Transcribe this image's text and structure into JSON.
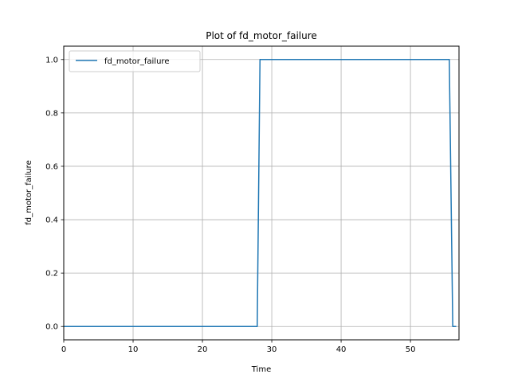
{
  "chart_data": {
    "type": "line",
    "title": "Plot of fd_motor_failure",
    "xlabel": "Time",
    "ylabel": "fd_motor_failure",
    "xlim": [
      0,
      57
    ],
    "ylim": [
      -0.05,
      1.05
    ],
    "xticks": [
      0,
      10,
      20,
      30,
      40,
      50
    ],
    "yticks": [
      0.0,
      0.2,
      0.4,
      0.6,
      0.8,
      1.0
    ],
    "xtick_labels": [
      "0",
      "10",
      "20",
      "30",
      "40",
      "50"
    ],
    "ytick_labels": [
      "0.0",
      "0.2",
      "0.4",
      "0.6",
      "0.8",
      "1.0"
    ],
    "grid": true,
    "legend_position": "top-left",
    "series": [
      {
        "name": "fd_motor_failure",
        "color": "#1f77b4",
        "x": [
          0,
          27.9,
          28.3,
          55.6,
          56.1,
          56.6
        ],
        "y": [
          0,
          0,
          1,
          1,
          0,
          0
        ]
      }
    ]
  }
}
